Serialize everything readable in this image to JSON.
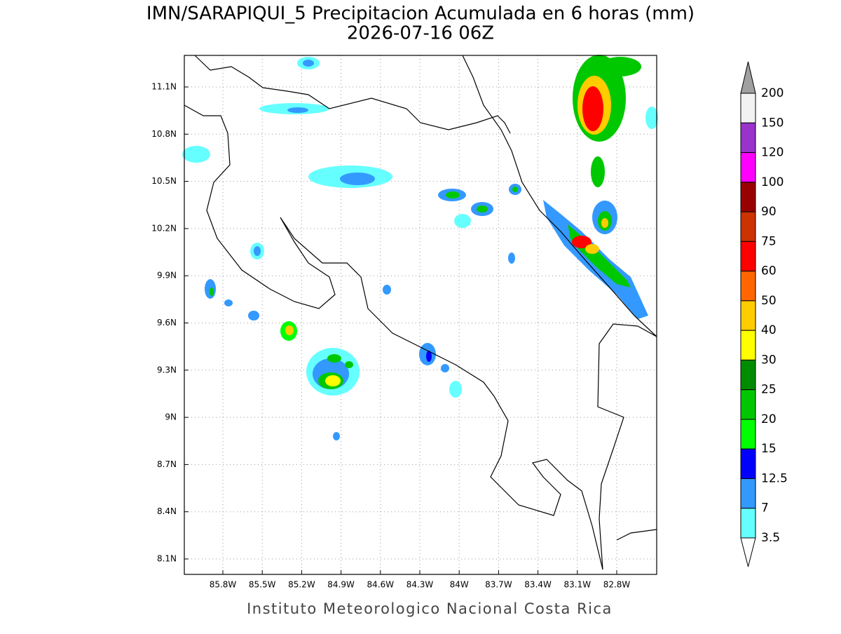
{
  "title": "IMN/SARAPIQUI_5 Precipitacion Acumulada en 6 horas (mm)",
  "subtitle": "2026-07-16 06Z",
  "map": {
    "lon_ticks": [
      "85.8W",
      "85.5W",
      "85.2W",
      "84.9W",
      "84.6W",
      "84.3W",
      "84W",
      "83.7W",
      "83.4W",
      "83.1W",
      "82.8W"
    ],
    "lat_ticks": [
      "11.1N",
      "10.8N",
      "10.5N",
      "10.2N",
      "9.9N",
      "9.6N",
      "9.3N",
      "9N",
      "8.7N",
      "8.4N",
      "8.1N"
    ]
  },
  "colorbar": {
    "labels": [
      "200",
      "150",
      "120",
      "100",
      "90",
      "75",
      "60",
      "50",
      "40",
      "30",
      "25",
      "20",
      "15",
      "12.5",
      "7",
      "3.5"
    ],
    "colors": [
      "#f2f2f2",
      "#9933cc",
      "#ff00ff",
      "#990000",
      "#cc3300",
      "#ff0000",
      "#ff6600",
      "#ffcc00",
      "#ffff00",
      "#008c00",
      "#00c800",
      "#00ff00",
      "#0000ff",
      "#3399ff",
      "#66ffff"
    ],
    "over_color": "#a0a0a0",
    "under_color": "#ffffff"
  },
  "footer": "Instituto Meteorologico Nacional Costa Rica"
}
